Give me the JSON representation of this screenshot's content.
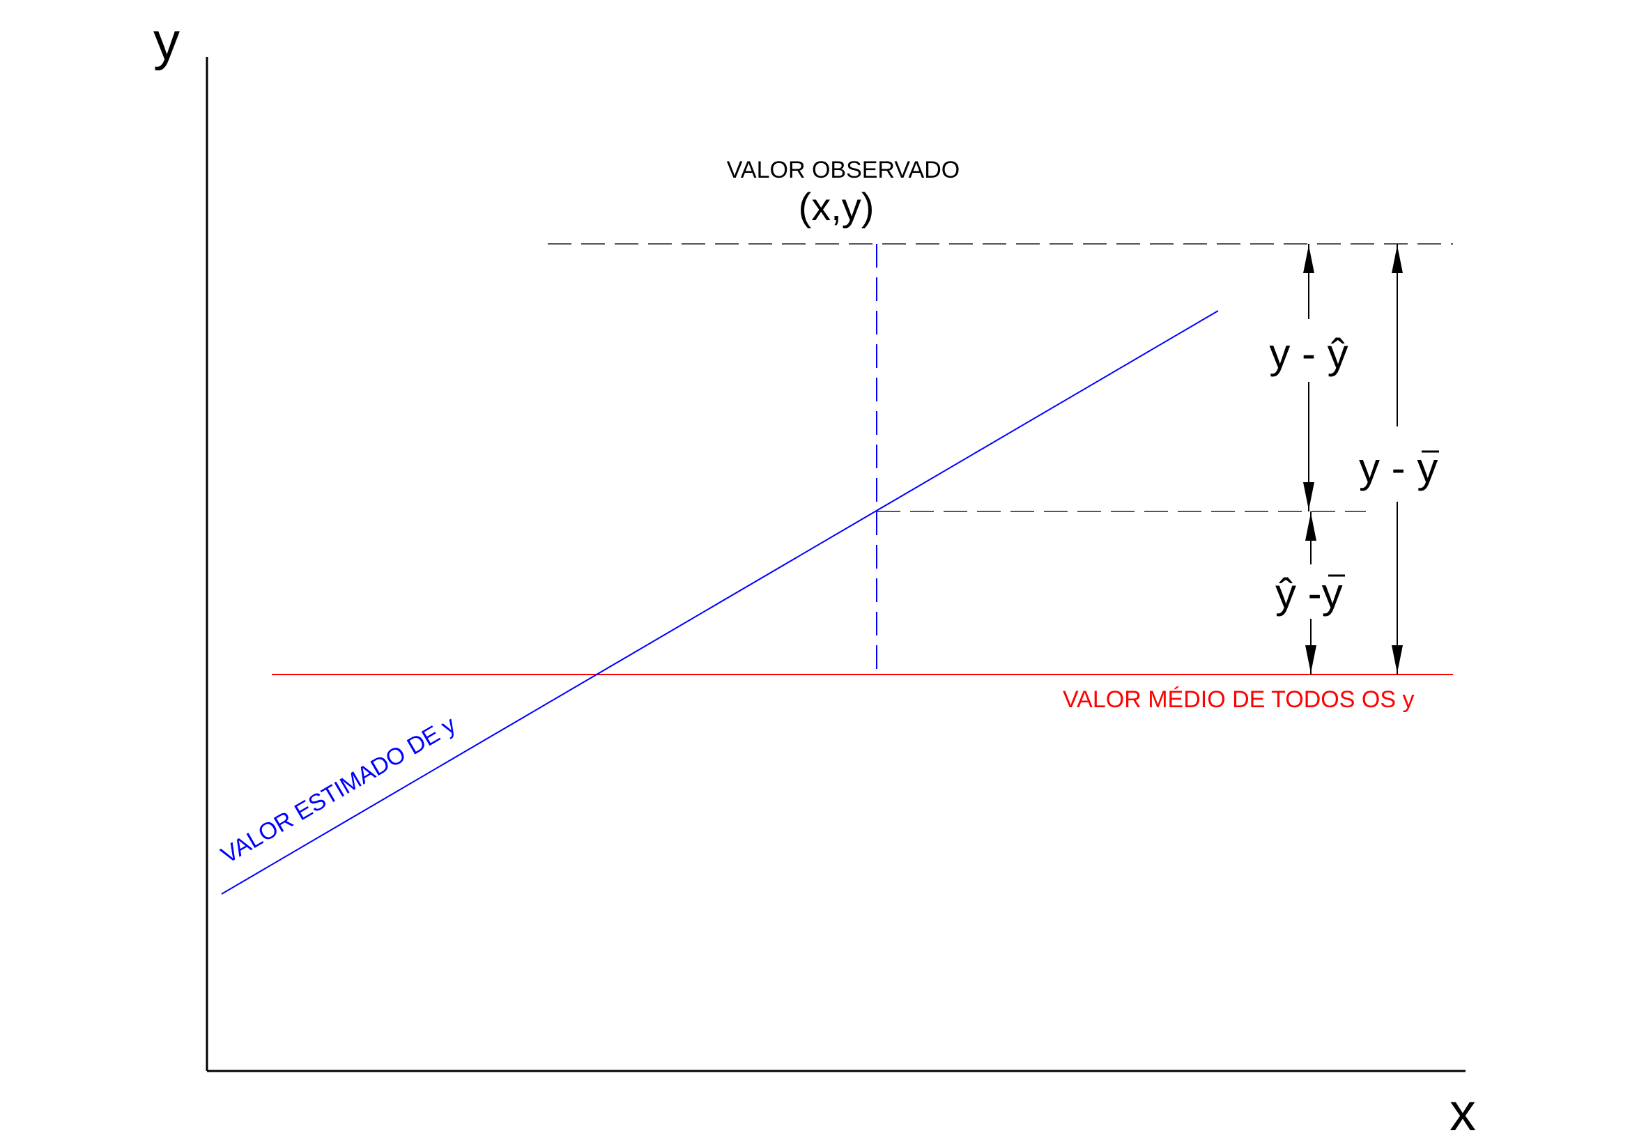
{
  "axes": {
    "y_label": "y",
    "x_label": "x"
  },
  "labels": {
    "observed_title": "VALOR OBSERVADO",
    "observed_point": "(x,y)",
    "y_minus_yhat": "y - ŷ",
    "y_minus_ybar_prefix": "y - ",
    "y_minus_ybar_bar": "y",
    "yhat_minus_ybar_prefix": "ŷ -",
    "yhat_minus_ybar_bar": "y",
    "mean_line": "VALOR MÉDIO DE TODOS OS y",
    "estimated_line": "VALOR ESTIMADO DE y"
  },
  "colors": {
    "axis": "#000000",
    "regression": "#0000ff",
    "mean": "#ff0000",
    "guide": "#555555",
    "dimension": "#000000"
  }
}
